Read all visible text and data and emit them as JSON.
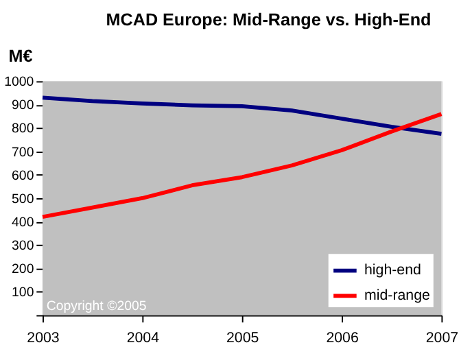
{
  "chart_data": {
    "type": "line",
    "title": "MCAD Europe: Mid-Range vs. High-End",
    "ylabel": "M€",
    "x": [
      2003,
      2003.5,
      2004,
      2004.5,
      2005,
      2005.5,
      2006,
      2006.5,
      2007
    ],
    "series": [
      {
        "name": "high-end",
        "color": "#000080",
        "values": [
          930,
          915,
          905,
          897,
          893,
          875,
          840,
          805,
          775
        ]
      },
      {
        "name": "mid-range",
        "color": "#ff0000",
        "values": [
          420,
          460,
          500,
          555,
          590,
          640,
          705,
          785,
          860
        ]
      }
    ],
    "xlim": [
      2003,
      2007
    ],
    "xticks": [
      2003,
      2004,
      2005,
      2006,
      2007
    ],
    "ylim": [
      0,
      1000
    ],
    "yticks": [
      {
        "value": 0,
        "label": null
      },
      100,
      200,
      300,
      400,
      500,
      600,
      700,
      800,
      900,
      1000
    ],
    "grid": false,
    "legend": "bottom right",
    "marker": "none",
    "line_style": "solid",
    "annotations": [
      "Copyright ©2005"
    ]
  }
}
